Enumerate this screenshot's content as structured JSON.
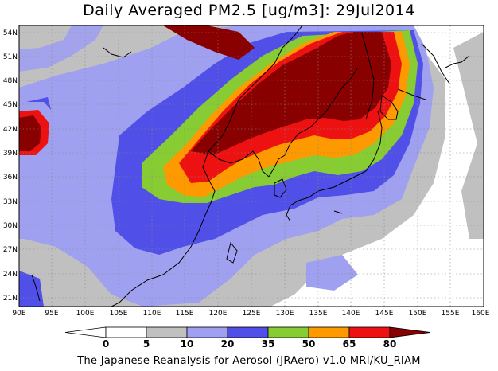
{
  "title": "Daily Averaged PM2.5 [ug/m3]: 29Jul2014",
  "footer": "The Japanese Reanalysis for Aerosol (JRAero) v1.0 MRI/KU_RIAM",
  "map": {
    "lon_range": [
      90,
      160
    ],
    "lat_range": [
      20,
      55
    ],
    "lon_ticks": [
      "90E",
      "95E",
      "100E",
      "105E",
      "110E",
      "115E",
      "120E",
      "125E",
      "130E",
      "135E",
      "140E",
      "145E",
      "150E",
      "155E",
      "160E"
    ],
    "lat_ticks": [
      "54N",
      "51N",
      "48N",
      "45N",
      "42N",
      "39N",
      "36N",
      "33N",
      "30N",
      "27N",
      "24N",
      "21N"
    ],
    "gridlines": "dotted"
  },
  "colorbar": {
    "labels": [
      "0",
      "5",
      "10",
      "20",
      "35",
      "50",
      "65",
      "80"
    ],
    "colors": [
      "#ffffff",
      "#ffffff",
      "#c0c0c0",
      "#a0a0f0",
      "#5050e8",
      "#88cc33",
      "#ff9900",
      "#ee1111",
      "#880000"
    ]
  }
}
